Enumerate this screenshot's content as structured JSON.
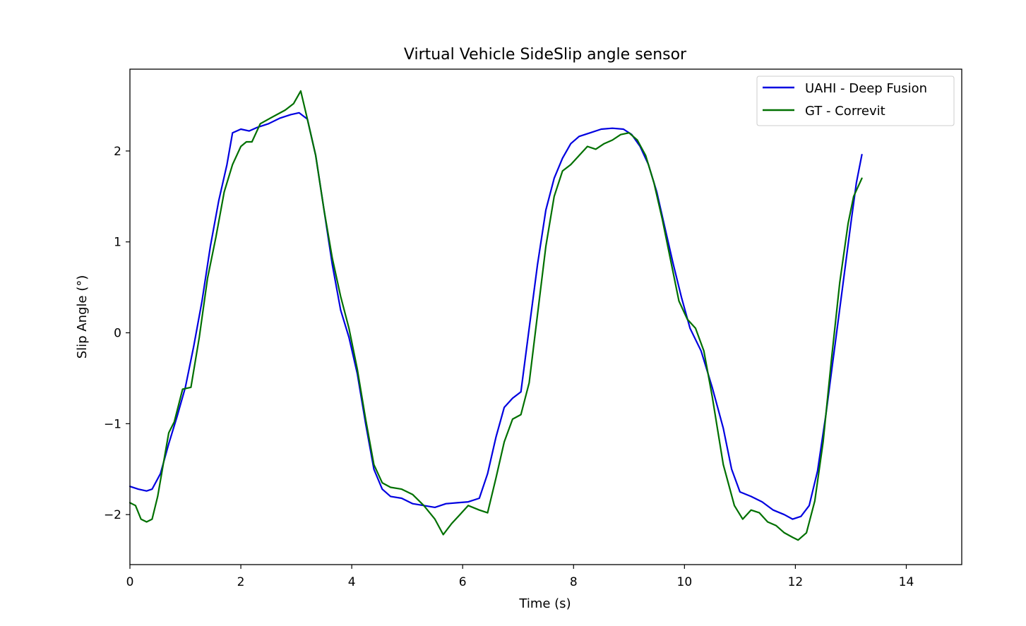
{
  "chart_data": {
    "type": "line",
    "title": "Virtual Vehicle SideSlip angle sensor",
    "xlabel": "Time (s)",
    "ylabel": "Slip Angle (°)",
    "xlim": [
      0,
      15
    ],
    "ylim": [
      -2.55,
      2.9
    ],
    "xticks": [
      0,
      2,
      4,
      6,
      8,
      10,
      12,
      14
    ],
    "xtick_labels": [
      "0",
      "2",
      "4",
      "6",
      "8",
      "10",
      "12",
      "14"
    ],
    "yticks": [
      -2,
      -1,
      0,
      1,
      2
    ],
    "ytick_labels": [
      "−2",
      "−1",
      "0",
      "1",
      "2"
    ],
    "grid": false,
    "legend_position": "upper right",
    "series": [
      {
        "name": "UAHI - Deep Fusion",
        "color": "#0000e0",
        "x": [
          0,
          0.15,
          0.3,
          0.4,
          0.55,
          0.7,
          0.85,
          1.0,
          1.15,
          1.3,
          1.45,
          1.6,
          1.75,
          1.85,
          2.0,
          2.15,
          2.3,
          2.5,
          2.7,
          2.9,
          3.05,
          3.2,
          3.35,
          3.5,
          3.65,
          3.8,
          3.95,
          4.1,
          4.25,
          4.4,
          4.55,
          4.7,
          4.9,
          5.1,
          5.3,
          5.5,
          5.7,
          5.9,
          6.1,
          6.3,
          6.45,
          6.6,
          6.75,
          6.9,
          7.05,
          7.2,
          7.35,
          7.5,
          7.65,
          7.8,
          7.95,
          8.1,
          8.3,
          8.5,
          8.7,
          8.9,
          9.05,
          9.2,
          9.35,
          9.5,
          9.65,
          9.8,
          9.95,
          10.1,
          10.3,
          10.5,
          10.7,
          10.85,
          11.0,
          11.2,
          11.4,
          11.6,
          11.8,
          11.95,
          12.1,
          12.25,
          12.4,
          12.55,
          12.7,
          12.85,
          13.0,
          13.1,
          13.2
        ],
        "y": [
          -1.69,
          -1.72,
          -1.74,
          -1.72,
          -1.55,
          -1.22,
          -0.92,
          -0.6,
          -0.15,
          0.35,
          0.95,
          1.45,
          1.85,
          2.2,
          2.24,
          2.22,
          2.26,
          2.3,
          2.36,
          2.4,
          2.42,
          2.35,
          1.95,
          1.35,
          0.75,
          0.25,
          -0.05,
          -0.45,
          -1.0,
          -1.5,
          -1.72,
          -1.8,
          -1.82,
          -1.88,
          -1.9,
          -1.92,
          -1.88,
          -1.87,
          -1.86,
          -1.82,
          -1.55,
          -1.15,
          -0.82,
          -0.72,
          -0.65,
          0.05,
          0.75,
          1.35,
          1.7,
          1.92,
          2.08,
          2.16,
          2.2,
          2.24,
          2.25,
          2.24,
          2.18,
          2.05,
          1.85,
          1.55,
          1.15,
          0.75,
          0.38,
          0.05,
          -0.2,
          -0.6,
          -1.05,
          -1.5,
          -1.75,
          -1.8,
          -1.86,
          -1.95,
          -2.0,
          -2.05,
          -2.02,
          -1.9,
          -1.52,
          -0.9,
          -0.2,
          0.5,
          1.2,
          1.65,
          1.96
        ]
      },
      {
        "name": "GT - Correvit",
        "color": "#007000",
        "x": [
          0,
          0.1,
          0.2,
          0.3,
          0.4,
          0.5,
          0.6,
          0.7,
          0.8,
          0.95,
          1.1,
          1.25,
          1.4,
          1.55,
          1.7,
          1.85,
          2.0,
          2.1,
          2.2,
          2.35,
          2.5,
          2.65,
          2.8,
          2.95,
          3.08,
          3.2,
          3.35,
          3.5,
          3.65,
          3.8,
          3.95,
          4.1,
          4.25,
          4.4,
          4.55,
          4.7,
          4.9,
          5.1,
          5.3,
          5.5,
          5.65,
          5.8,
          5.95,
          6.1,
          6.3,
          6.45,
          6.6,
          6.75,
          6.9,
          7.05,
          7.2,
          7.35,
          7.5,
          7.65,
          7.8,
          7.95,
          8.1,
          8.25,
          8.4,
          8.55,
          8.7,
          8.85,
          9.0,
          9.15,
          9.3,
          9.45,
          9.6,
          9.75,
          9.9,
          10.05,
          10.2,
          10.35,
          10.5,
          10.7,
          10.9,
          11.05,
          11.2,
          11.35,
          11.5,
          11.65,
          11.8,
          11.95,
          12.05,
          12.2,
          12.35,
          12.5,
          12.65,
          12.8,
          12.95,
          13.05,
          13.2
        ],
        "y": [
          -1.87,
          -1.9,
          -2.05,
          -2.08,
          -2.05,
          -1.8,
          -1.45,
          -1.1,
          -0.98,
          -0.62,
          -0.6,
          -0.05,
          0.6,
          1.05,
          1.55,
          1.85,
          2.05,
          2.1,
          2.1,
          2.3,
          2.35,
          2.4,
          2.45,
          2.52,
          2.66,
          2.35,
          1.95,
          1.35,
          0.82,
          0.4,
          0.05,
          -0.4,
          -0.95,
          -1.45,
          -1.65,
          -1.7,
          -1.72,
          -1.78,
          -1.9,
          -2.05,
          -2.22,
          -2.1,
          -2.0,
          -1.9,
          -1.95,
          -1.98,
          -1.6,
          -1.2,
          -0.95,
          -0.9,
          -0.55,
          0.2,
          0.95,
          1.5,
          1.78,
          1.85,
          1.95,
          2.05,
          2.02,
          2.08,
          2.12,
          2.18,
          2.2,
          2.12,
          1.95,
          1.65,
          1.25,
          0.8,
          0.35,
          0.15,
          0.05,
          -0.2,
          -0.7,
          -1.45,
          -1.9,
          -2.05,
          -1.95,
          -1.98,
          -2.08,
          -2.12,
          -2.2,
          -2.25,
          -2.28,
          -2.2,
          -1.85,
          -1.2,
          -0.3,
          0.55,
          1.2,
          1.5,
          1.7
        ]
      }
    ]
  }
}
